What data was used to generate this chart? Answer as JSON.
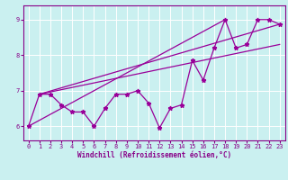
{
  "background_color": "#caf0f0",
  "spine_color": "#880088",
  "line_color": "#990099",
  "grid_color": "#ffffff",
  "xlabel": "Windchill (Refroidissement éolien,°C)",
  "xlim": [
    -0.5,
    23.5
  ],
  "ylim": [
    5.6,
    9.4
  ],
  "yticks": [
    6,
    7,
    8,
    9
  ],
  "xticks": [
    0,
    1,
    2,
    3,
    4,
    5,
    6,
    7,
    8,
    9,
    10,
    11,
    12,
    13,
    14,
    15,
    16,
    17,
    18,
    19,
    20,
    21,
    22,
    23
  ],
  "x_main": [
    0,
    1,
    2,
    3,
    4,
    5,
    6,
    7,
    8,
    9,
    10,
    11,
    12,
    13,
    14,
    15,
    16,
    17,
    18,
    19,
    20,
    21,
    22,
    23
  ],
  "y_main": [
    6.0,
    6.9,
    6.9,
    6.6,
    6.4,
    6.4,
    6.0,
    6.5,
    6.9,
    6.9,
    7.0,
    6.65,
    5.95,
    6.5,
    6.6,
    7.85,
    7.3,
    8.2,
    9.0,
    8.2,
    8.3,
    9.0,
    9.0,
    8.87
  ],
  "trend1_x": [
    0,
    18
  ],
  "trend1_y": [
    6.0,
    9.0
  ],
  "trend2_x": [
    1,
    23
  ],
  "trend2_y": [
    6.9,
    8.87
  ],
  "trend3_x": [
    1,
    23
  ],
  "trend3_y": [
    6.9,
    8.3
  ]
}
